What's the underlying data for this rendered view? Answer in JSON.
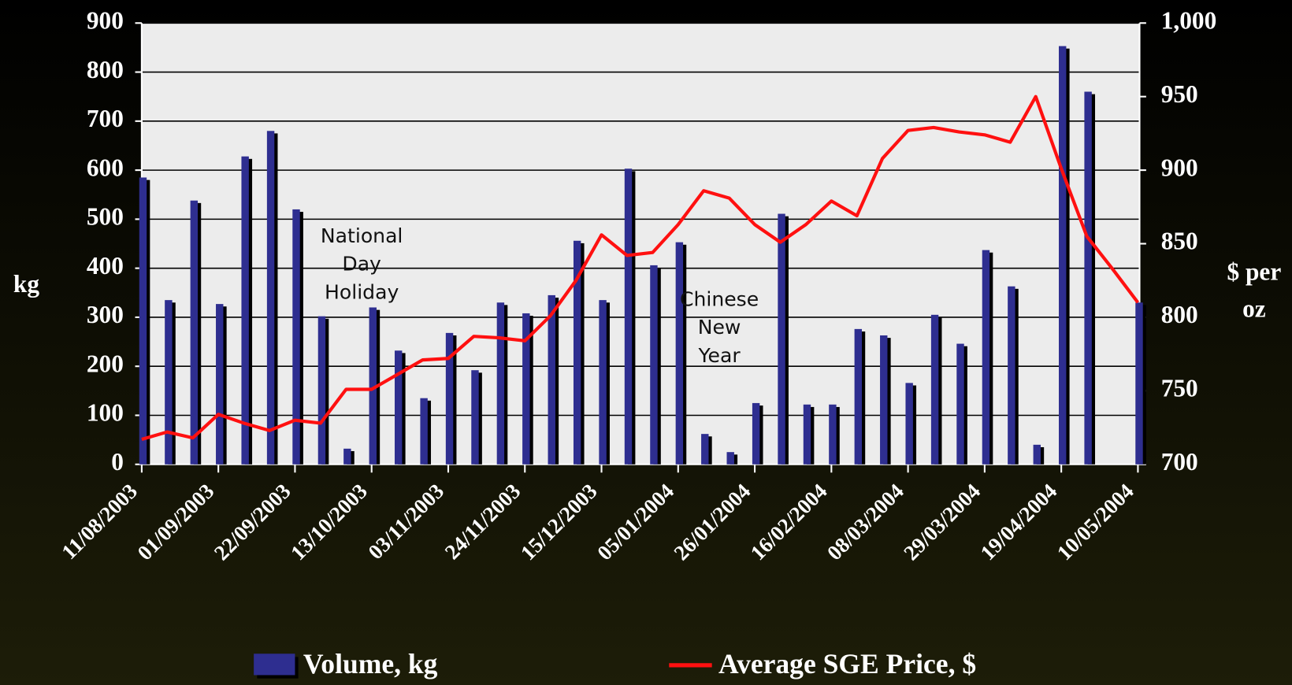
{
  "chart_data": {
    "type": "bar_line",
    "categories": [
      "11/08/2003",
      null,
      null,
      "01/09/2003",
      null,
      null,
      "22/09/2003",
      null,
      null,
      "13/10/2003",
      null,
      null,
      "03/11/2003",
      null,
      null,
      "24/11/2003",
      null,
      null,
      "15/12/2003",
      null,
      null,
      "05/01/2004",
      null,
      null,
      "26/01/2004",
      null,
      null,
      "16/02/2004",
      null,
      null,
      "08/03/2004",
      null,
      null,
      "29/03/2004",
      null,
      null,
      "19/04/2004",
      null,
      null,
      "10/05/2004"
    ],
    "series": [
      {
        "name": "Volume, kg",
        "color": "#2e2e90",
        "type": "bar",
        "values": [
          585,
          335,
          538,
          327,
          628,
          680,
          520,
          302,
          32,
          320,
          232,
          135,
          268,
          192,
          330,
          308,
          345,
          456,
          335,
          603,
          406,
          453,
          62,
          25,
          125,
          511,
          122,
          122,
          276,
          263,
          166,
          305,
          246,
          437,
          363,
          40,
          853,
          760,
          null,
          330
        ]
      },
      {
        "name": "Average SGE Price, $",
        "color": "#ff1010",
        "type": "line",
        "axis": "y2",
        "values": [
          717,
          722,
          718,
          734,
          728,
          723,
          730,
          728,
          751,
          751,
          761,
          771,
          772,
          787,
          786,
          784,
          801,
          825,
          856,
          842,
          844,
          863,
          886,
          881,
          863,
          851,
          863,
          879,
          869,
          908,
          927,
          929,
          926,
          924,
          919,
          950,
          901,
          855,
          833,
          810
        ]
      }
    ],
    "y_label": "kg",
    "y2_label": [
      "$ per",
      "oz"
    ],
    "ylim": [
      0,
      900
    ],
    "yticks": [
      0,
      100,
      200,
      300,
      400,
      500,
      600,
      700,
      800,
      900
    ],
    "y2lim": [
      700,
      1000
    ],
    "y2ticks": [
      700,
      750,
      800,
      850,
      900,
      950,
      {
        "value": 1000,
        "label": "1,000"
      }
    ],
    "grid": true,
    "legend": "bottom",
    "annotations": [
      {
        "lines": [
          "National",
          "Day",
          "Holiday"
        ],
        "index": 9
      },
      {
        "lines": [
          "Chinese",
          "New",
          "Year"
        ],
        "index": 23
      }
    ]
  }
}
